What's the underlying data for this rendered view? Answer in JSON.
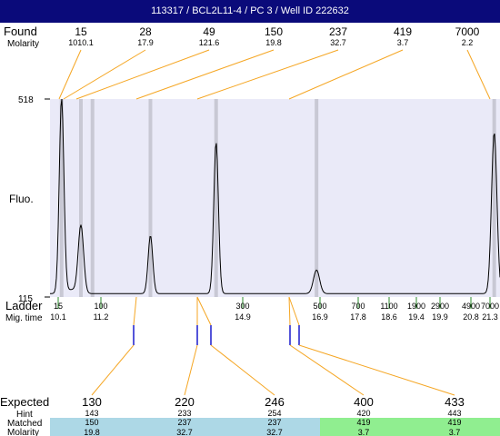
{
  "header": {
    "title": "113317 / BCL2L11-4 / PC 3 / Well ID 222632"
  },
  "labels": {
    "found": "Found",
    "molarity": "Molarity",
    "fluo": "Fluo.",
    "ladder": "Ladder",
    "mig_time": "Mig. time",
    "expected": "Expected",
    "hint": "Hint",
    "matched": "Matched",
    "molarity_bottom": "Molarity"
  },
  "colors": {
    "title_bg": "#0a0a7a",
    "plot_bg": "#eaeaf8",
    "peak_band": "#c8c8d4",
    "trace": "#000000",
    "connector": "#f5a623",
    "ladder_tick": "#2e8b2e",
    "matched_tick": "#1a1acc",
    "row_blue": "#add8e6",
    "row_green": "#90ee90"
  },
  "chart_data": {
    "type": "line",
    "title": "113317 / BCL2L11-4 / PC 3 / Well ID 222632",
    "ylabel": "Fluo.",
    "ylim": [
      115,
      518
    ],
    "y_ticks": [
      "518",
      "115"
    ],
    "found": [
      {
        "size": "15",
        "molarity": "1010.1"
      },
      {
        "size": "28",
        "molarity": "17.9"
      },
      {
        "size": "49",
        "molarity": "121.6"
      },
      {
        "size": "150",
        "molarity": "19.8"
      },
      {
        "size": "237",
        "molarity": "32.7"
      },
      {
        "size": "419",
        "molarity": "3.7"
      },
      {
        "size": "7000",
        "molarity": "2.2"
      }
    ],
    "ladder": [
      {
        "size": "15",
        "time": "10.1"
      },
      {
        "size": "100",
        "time": "11.2"
      },
      {
        "size": "300",
        "time": "14.9"
      },
      {
        "size": "500",
        "time": "16.9"
      },
      {
        "size": "700",
        "time": "17.8"
      },
      {
        "size": "1100",
        "time": "18.6"
      },
      {
        "size": "1900",
        "time": "19.4"
      },
      {
        "size": "2900",
        "time": "19.9"
      },
      {
        "size": "4900",
        "time": "20.8"
      },
      {
        "size": "7000",
        "time": "21.3"
      }
    ],
    "expected": [
      {
        "expected": "130",
        "hint": "143",
        "matched": "150",
        "molarity": "19.8"
      },
      {
        "expected": "220",
        "hint": "233",
        "matched": "237",
        "molarity": "32.7"
      },
      {
        "expected": "246",
        "hint": "254",
        "matched": "237",
        "molarity": "32.7"
      },
      {
        "expected": "400",
        "hint": "420",
        "matched": "419",
        "molarity": "3.7"
      },
      {
        "expected": "433",
        "hint": "443",
        "matched": "419",
        "molarity": "3.7"
      }
    ],
    "trace": {
      "baseline": 122,
      "peaks": [
        {
          "time": 10.1,
          "height": 518,
          "label": "15"
        },
        {
          "time": 10.6,
          "height": 260,
          "label": "28"
        },
        {
          "time": 12.4,
          "height": 240,
          "label": "49"
        },
        {
          "time": 14.1,
          "height": 430,
          "label": "150"
        },
        {
          "time": 16.7,
          "height": 170,
          "label": "237"
        },
        {
          "time": 21.3,
          "height": 450,
          "label": "7000"
        }
      ]
    }
  }
}
